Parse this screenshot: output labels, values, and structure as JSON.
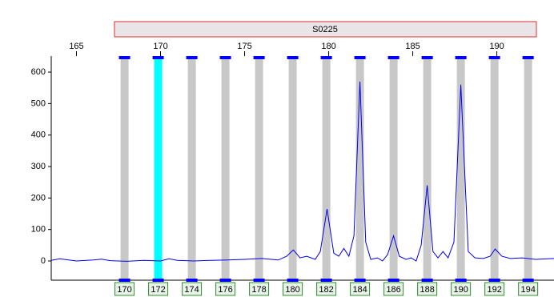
{
  "chart_data": {
    "type": "line",
    "marker": "S0225",
    "x": [
      163.5,
      164,
      165,
      166,
      166.5,
      167,
      168,
      169,
      170,
      170.5,
      171,
      172,
      173,
      174,
      175,
      176,
      177,
      177.5,
      177.9,
      178.3,
      178.7,
      179.2,
      179.5,
      179.9,
      180.3,
      180.6,
      180.9,
      181.2,
      181.5,
      181.86,
      182.2,
      182.5,
      182.9,
      183.2,
      183.5,
      183.86,
      184.2,
      184.6,
      184.9,
      185.2,
      185.5,
      185.86,
      186.2,
      186.5,
      186.8,
      187.1,
      187.45,
      187.86,
      188.3,
      188.7,
      189.2,
      189.6,
      189.9,
      190.3,
      190.8,
      191.5,
      192.3,
      193.4
    ],
    "values": [
      2,
      7,
      0,
      3,
      6,
      1,
      -1,
      2,
      0,
      7,
      2,
      0,
      2,
      3,
      5,
      8,
      3,
      15,
      35,
      10,
      15,
      5,
      30,
      165,
      25,
      15,
      40,
      15,
      80,
      570,
      60,
      5,
      10,
      0,
      20,
      80,
      15,
      5,
      10,
      0,
      50,
      240,
      30,
      10,
      30,
      10,
      60,
      560,
      30,
      10,
      8,
      15,
      38,
      15,
      8,
      10,
      5,
      8
    ],
    "color": "#0000ee",
    "xlim": [
      163.5,
      193.4
    ],
    "xticks": [
      165,
      170,
      175,
      180,
      185,
      190
    ],
    "ylim": [
      -61,
      651
    ],
    "yticks": [
      0,
      100,
      200,
      300,
      400,
      500,
      600
    ],
    "bins": [
      {
        "label": "170",
        "x": 167.86,
        "color": "#c8c8c8"
      },
      {
        "label": "172",
        "x": 169.86,
        "color": "#00ffff"
      },
      {
        "label": "174",
        "x": 171.86,
        "color": "#c8c8c8"
      },
      {
        "label": "176",
        "x": 173.86,
        "color": "#c8c8c8"
      },
      {
        "label": "178",
        "x": 175.86,
        "color": "#c8c8c8"
      },
      {
        "label": "180",
        "x": 177.86,
        "color": "#c8c8c8"
      },
      {
        "label": "182",
        "x": 179.86,
        "color": "#c8c8c8"
      },
      {
        "label": "184",
        "x": 181.86,
        "color": "#c8c8c8"
      },
      {
        "label": "186",
        "x": 183.86,
        "color": "#c8c8c8"
      },
      {
        "label": "188",
        "x": 185.86,
        "color": "#c8c8c8"
      },
      {
        "label": "190",
        "x": 187.86,
        "color": "#c8c8c8"
      },
      {
        "label": "192",
        "x": 189.86,
        "color": "#c8c8c8"
      },
      {
        "label": "194",
        "x": 191.86,
        "color": "#c8c8c8"
      }
    ]
  }
}
